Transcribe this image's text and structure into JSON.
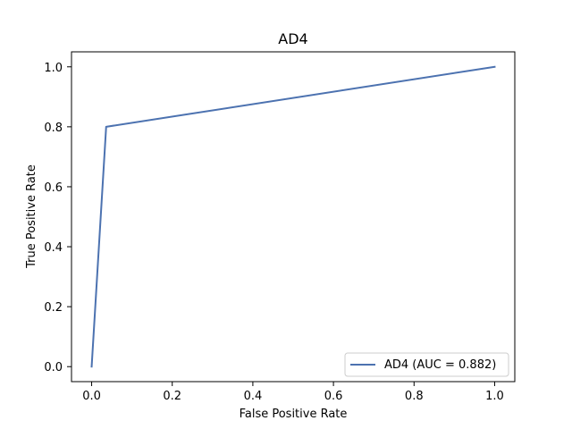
{
  "chart_data": {
    "type": "line",
    "title": "AD4",
    "xlabel": "False Positive Rate",
    "ylabel": "True Positive Rate",
    "xlim": [
      -0.05,
      1.05
    ],
    "ylim": [
      -0.05,
      1.05
    ],
    "xticks": [
      0.0,
      0.2,
      0.4,
      0.6,
      0.8,
      1.0
    ],
    "yticks": [
      0.0,
      0.2,
      0.4,
      0.6,
      0.8,
      1.0
    ],
    "xtick_labels": [
      "0.0",
      "0.2",
      "0.4",
      "0.6",
      "0.8",
      "1.0"
    ],
    "ytick_labels": [
      "0.0",
      "0.2",
      "0.4",
      "0.6",
      "0.8",
      "1.0"
    ],
    "grid": false,
    "legend_position": "lower-right",
    "series": [
      {
        "name": "AD4 (AUC = 0.882)",
        "color": "#4c72b0",
        "x": [
          0.0,
          0.036,
          1.0
        ],
        "y": [
          0.0,
          0.8,
          1.0
        ]
      }
    ]
  }
}
